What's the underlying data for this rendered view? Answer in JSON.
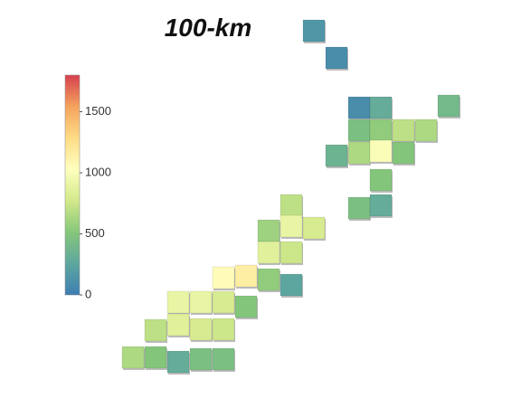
{
  "title": "100-km",
  "colorbar": {
    "lim": [
      0,
      1800
    ],
    "ticks": [
      0,
      500,
      1000,
      1500
    ],
    "colors": [
      "#3d7db3",
      "#5ea79f",
      "#86c77a",
      "#d2e98b",
      "#ffffbe",
      "#fddc86",
      "#f5a35e",
      "#d6404e"
    ]
  },
  "cells": {
    "values": [
      150,
      100,
      100,
      300,
      400,
      450,
      550,
      700,
      650,
      350,
      650,
      1000,
      500,
      500,
      450,
      300,
      700,
      600,
      900,
      800,
      850,
      750,
      1050,
      1150,
      550,
      250,
      900,
      900,
      800,
      500,
      700,
      850,
      800,
      750,
      650,
      500,
      300,
      450,
      450
    ]
  }
}
